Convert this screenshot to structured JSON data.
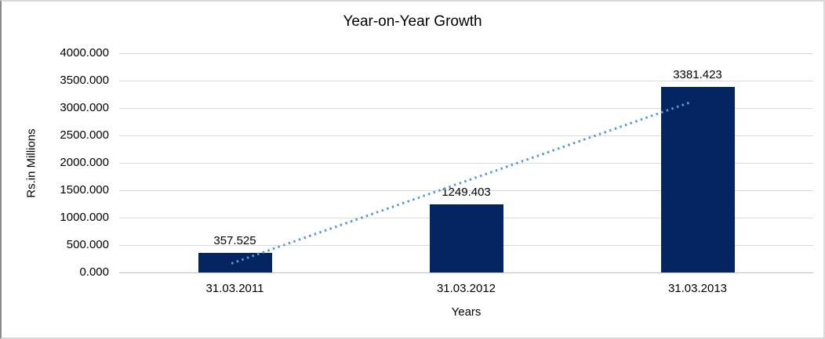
{
  "chart": {
    "title": "Year-on-Year Growth",
    "y_axis_title": "Rs.in Millions",
    "x_axis_title": "Years"
  },
  "chart_data": {
    "type": "bar",
    "title": "Year-on-Year Growth",
    "xlabel": "Years",
    "ylabel": "Rs.in Millions",
    "categories": [
      "31.03.2011",
      "31.03.2012",
      "31.03.2013"
    ],
    "values": [
      357.525,
      1249.403,
      3381.423
    ],
    "data_labels": [
      "357.525",
      "1249.403",
      "3381.423"
    ],
    "ylim": [
      0,
      4000
    ],
    "ytick_step": 500,
    "ytick_labels": [
      "0.000",
      "500.000",
      "1000.000",
      "1500.000",
      "2000.000",
      "2500.000",
      "3000.000",
      "3500.000",
      "4000.000"
    ],
    "grid": true,
    "legend": "none",
    "trendline": {
      "type": "linear",
      "style": "dotted",
      "x1_frac": 0.162,
      "y1": 170,
      "x2_frac": 0.823,
      "y2": 3110
    },
    "colors": {
      "bar": "#042462",
      "trendline": "#5b9bd5",
      "gridline": "#d9d9d9",
      "axis_line": "#bfbfbf",
      "text": "#000000",
      "frame_border": "#d8d8d8"
    }
  }
}
